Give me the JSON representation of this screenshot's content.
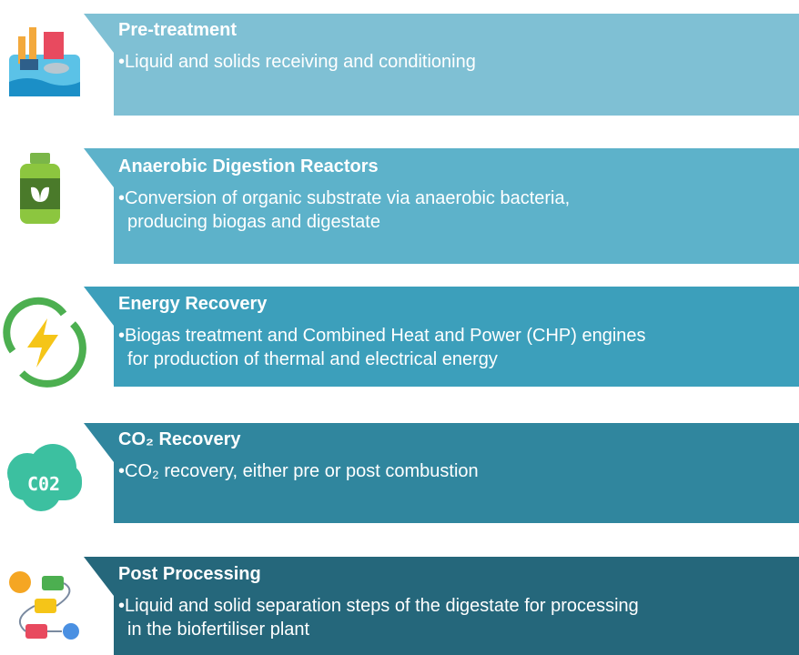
{
  "steps": [
    {
      "title": "Pre-treatment",
      "description": [
        "•Liquid and solids receiving and conditioning"
      ]
    },
    {
      "title": "Anaerobic Digestion Reactors",
      "description": [
        "•Conversion of organic substrate via anaerobic bacteria,",
        "producing biogas and digestate"
      ]
    },
    {
      "title": "Energy Recovery",
      "description": [
        "•Biogas treatment and Combined Heat and Power (CHP) engines",
        "for production of thermal and electrical energy"
      ]
    },
    {
      "title": "CO₂ Recovery",
      "description": [
        "•CO₂ recovery, either pre or post combustion"
      ]
    },
    {
      "title": "Post Processing",
      "description": [
        "•Liquid and solid separation steps of the digestate for processing",
        "in the biofertiliser plant"
      ]
    }
  ]
}
